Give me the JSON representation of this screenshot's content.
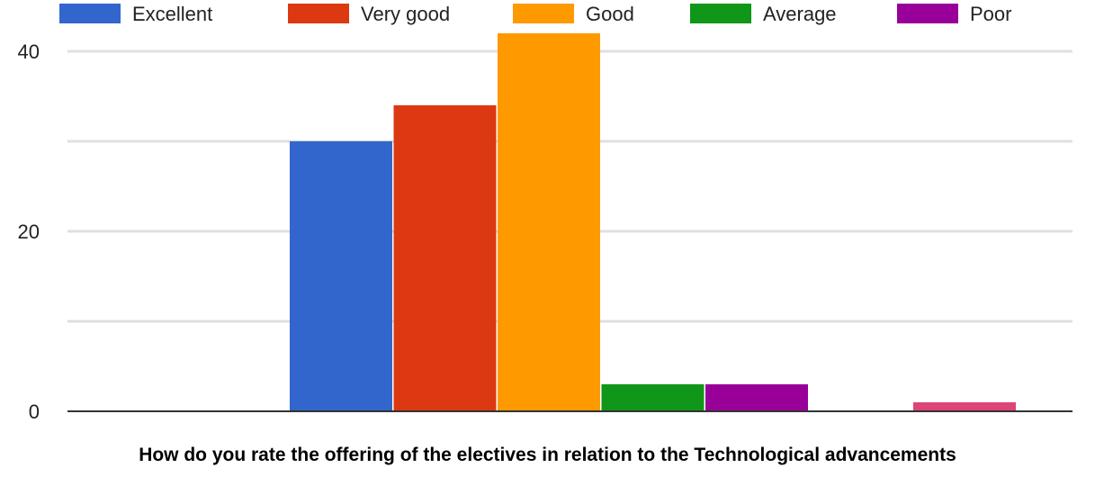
{
  "chart_data": {
    "type": "bar",
    "caption": "How do you rate the offering of the electives in relation to the Technological advancements",
    "ylim": [
      0,
      42
    ],
    "yticks": [
      0,
      20,
      40
    ],
    "grid": true,
    "legend_position": "top",
    "legend": [
      {
        "label": "Excellent",
        "color": "#3366cc"
      },
      {
        "label": "Very good",
        "color": "#dc3912"
      },
      {
        "label": "Good",
        "color": "#ff9900"
      },
      {
        "label": "Average",
        "color": "#109618"
      },
      {
        "label": "Poor",
        "color": "#990099"
      }
    ],
    "bars": [
      {
        "value": 30,
        "color": "#3366cc"
      },
      {
        "value": 34,
        "color": "#dc3912"
      },
      {
        "value": 42,
        "color": "#ff9900"
      },
      {
        "value": 3,
        "color": "#109618"
      },
      {
        "value": 3,
        "color": "#990099"
      },
      {
        "value": 0,
        "color": "#0099c6"
      },
      {
        "value": 1,
        "color": "#dd4477"
      }
    ]
  }
}
